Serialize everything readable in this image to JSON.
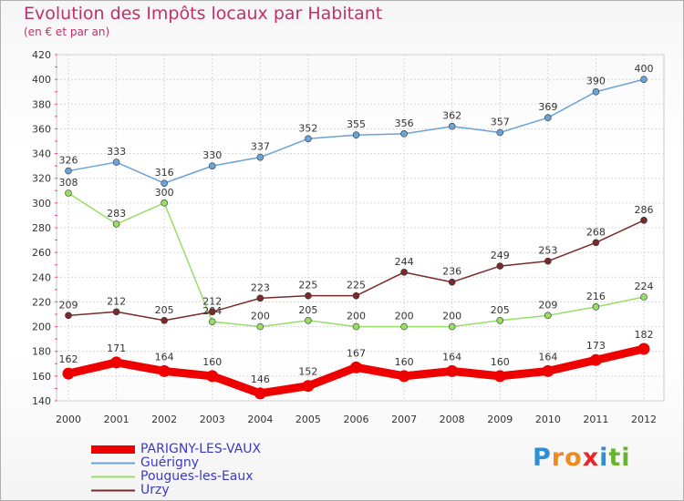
{
  "chart_data": {
    "type": "line",
    "title": "Evolution des Impôts locaux par Habitant",
    "subtitle": "(en € et par an)",
    "x": [
      "2000",
      "2001",
      "2002",
      "2003",
      "2004",
      "2005",
      "2006",
      "2007",
      "2008",
      "2009",
      "2010",
      "2011",
      "2012"
    ],
    "ylim": [
      140,
      420
    ],
    "yticks": [
      "140",
      "160",
      "180",
      "200",
      "220",
      "240",
      "260",
      "280",
      "300",
      "320",
      "340",
      "360",
      "380",
      "400",
      "420"
    ],
    "grid": true,
    "legend_position": "bottom-left",
    "series": [
      {
        "name": "PARIGNY-LES-VAUX",
        "color": "#ee0000",
        "values": [
          162,
          171,
          164,
          160,
          146,
          152,
          167,
          160,
          164,
          160,
          164,
          173,
          182
        ],
        "labels": [
          "162",
          "171",
          "164",
          "160",
          "146",
          "152",
          "167",
          "160",
          "164",
          "160",
          "164",
          "173",
          "182"
        ]
      },
      {
        "name": "Guérigny",
        "color": "#6aa3d8",
        "values": [
          326,
          333,
          316,
          330,
          337,
          352,
          355,
          356,
          362,
          357,
          369,
          390,
          400
        ],
        "labels": [
          "326",
          "333",
          "316",
          "330",
          "337",
          "352",
          "355",
          "356",
          "362",
          "357",
          "369",
          "390",
          "400"
        ]
      },
      {
        "name": "Pougues-les-Eaux",
        "color": "#99dd66",
        "values": [
          308,
          283,
          300,
          204,
          200,
          205,
          200,
          200,
          200,
          205,
          209,
          216,
          224
        ],
        "labels": [
          "308",
          "283",
          "300",
          "204",
          "200",
          "205",
          "200",
          "200",
          "200",
          "205",
          "209",
          "216",
          "224"
        ]
      },
      {
        "name": "Urzy",
        "color": "#7a2a2a",
        "values": [
          209,
          212,
          205,
          212,
          223,
          225,
          225,
          244,
          236,
          249,
          253,
          268,
          286
        ],
        "labels": [
          "209",
          "212",
          "205",
          "212",
          "223",
          "225",
          "225",
          "244",
          "236",
          "249",
          "253",
          "268",
          "286"
        ]
      }
    ]
  },
  "logo": {
    "letters": [
      "P",
      "r",
      "o",
      "x",
      "i",
      "t",
      "i"
    ],
    "colors": [
      "#2d8fd5",
      "#f08a1c",
      "#f08a1c",
      "#e8262a",
      "#2d8fd5",
      "#6ab42d",
      "#6ab42d"
    ]
  }
}
